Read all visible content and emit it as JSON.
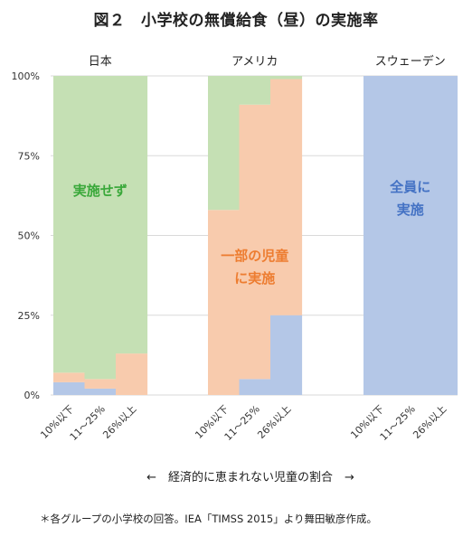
{
  "title": "図２　小学校の無償給食（昼）の実施率",
  "footnote": "＊各グループの小学校の回答。IEA「TIMSS 2015」より舞田敏彦作成。",
  "chart_data": {
    "type": "bar",
    "stacked": true,
    "title": "図２　小学校の無償給食（昼）の実施率",
    "xlabel": "←　経済的に恵まれない児童の割合　→",
    "ylim": [
      0,
      100
    ],
    "yticks": [
      "0%",
      "25%",
      "50%",
      "75%",
      "100%"
    ],
    "ytick_values": [
      0,
      25,
      50,
      75,
      100
    ],
    "grid": true,
    "colors": {
      "all": "#b4c7e7",
      "some": "#f8cbad",
      "none": "#c5e0b4",
      "grid": "#d9d9d9",
      "text_none": "#3aa83a",
      "text_some": "#ed7d31",
      "text_all": "#4472c4"
    },
    "groups": [
      {
        "country": "日本",
        "categories": [
          "10%以下",
          "11～25%",
          "26%以上"
        ],
        "all": [
          4,
          2,
          0
        ],
        "some": [
          3,
          3,
          13
        ],
        "none": [
          93,
          95,
          87
        ]
      },
      {
        "country": "アメリカ",
        "categories": [
          "10%以下",
          "11～25%",
          "26%以上"
        ],
        "all": [
          0,
          5,
          25
        ],
        "some": [
          58,
          86,
          74
        ],
        "none": [
          42,
          9,
          1
        ]
      },
      {
        "country": "スウェーデン",
        "categories": [
          "10%以下",
          "11～25%",
          "26%以上"
        ],
        "all": [
          100,
          100,
          100
        ],
        "some": [
          0,
          0,
          0
        ],
        "none": [
          0,
          0,
          0
        ]
      }
    ],
    "annotations": {
      "none": [
        "実施せず"
      ],
      "some": [
        "一部の児童",
        "に実施"
      ],
      "all": [
        "全員に",
        "実施"
      ]
    }
  }
}
